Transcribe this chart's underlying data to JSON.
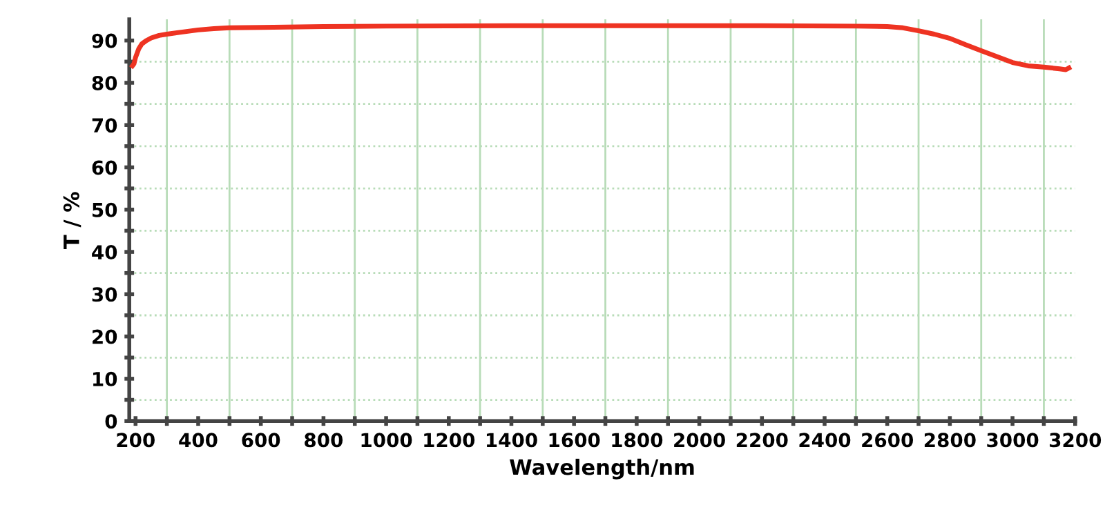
{
  "chart_data": {
    "type": "line",
    "xlabel": "Wavelength/nm",
    "ylabel": "T / %",
    "x": [
      190,
      195,
      200,
      210,
      220,
      235,
      250,
      275,
      300,
      350,
      400,
      450,
      500,
      600,
      800,
      1000,
      1400,
      1800,
      2200,
      2500,
      2600,
      2650,
      2700,
      2750,
      2800,
      2850,
      2900,
      2950,
      3000,
      3050,
      3100,
      3150,
      3170,
      3180
    ],
    "series": [
      {
        "color": "#ee3322",
        "values": [
          84.0,
          84.5,
          86.0,
          88.0,
          89.2,
          90.0,
          90.6,
          91.2,
          91.5,
          92.0,
          92.5,
          92.8,
          93.0,
          93.1,
          93.3,
          93.4,
          93.5,
          93.5,
          93.5,
          93.4,
          93.3,
          93.0,
          92.3,
          91.5,
          90.5,
          89.0,
          87.6,
          86.2,
          84.8,
          84.0,
          83.7,
          83.3,
          83.1,
          83.5
        ]
      }
    ],
    "xlim": [
      180,
      3200
    ],
    "ylim": [
      0,
      95
    ],
    "xticks": [
      200,
      400,
      600,
      800,
      1000,
      1200,
      1400,
      1600,
      1800,
      2000,
      2200,
      2400,
      2600,
      2800,
      3000,
      3200
    ],
    "yticks": [
      0,
      10,
      20,
      30,
      40,
      50,
      60,
      70,
      80,
      90
    ],
    "grid": true,
    "marker": "none",
    "line_style": "solid"
  }
}
